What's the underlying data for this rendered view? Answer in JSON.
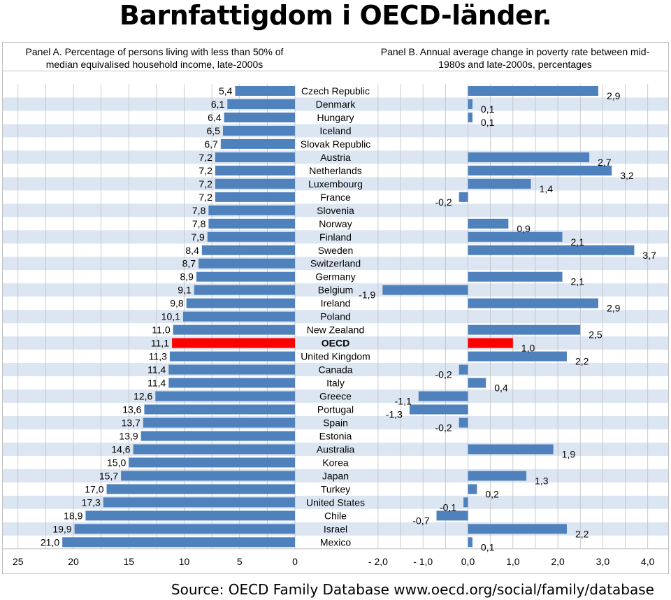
{
  "title": "Barnfattigdom i OECD-länder.",
  "source": "Source: OECD Family Database www.oecd.org/social/family/database",
  "colors": {
    "bar": "#4f81bd",
    "highlight": "#ff0000",
    "stripe": "#dce6f2",
    "grid": "#bfbfbf"
  },
  "chart_data": [
    {
      "type": "bar",
      "orientation": "horizontal",
      "title": "Panel A. Percentage of persons living with less than 50% of median equivalised household income, late-2000s",
      "xlim": [
        25,
        0
      ],
      "ticks": [
        "25",
        "20",
        "15",
        "10",
        "5",
        "0"
      ],
      "categories": [
        "Czech Republic",
        "Denmark",
        "Hungary",
        "Iceland",
        "Slovak Republic",
        "Austria",
        "Netherlands",
        "Luxembourg",
        "France",
        "Slovenia",
        "Norway",
        "Finland",
        "Sweden",
        "Switzerland",
        "Germany",
        "Belgium",
        "Ireland",
        "Poland",
        "New Zealand",
        "OECD",
        "United Kingdom",
        "Canada",
        "Italy",
        "Greece",
        "Portugal",
        "Spain",
        "Estonia",
        "Australia",
        "Korea",
        "Japan",
        "Turkey",
        "United States",
        "Chile",
        "Israel",
        "Mexico"
      ],
      "values": [
        5.4,
        6.1,
        6.4,
        6.5,
        6.7,
        7.2,
        7.2,
        7.2,
        7.2,
        7.8,
        7.8,
        7.9,
        8.4,
        8.7,
        8.9,
        9.1,
        9.8,
        10.1,
        11.0,
        11.1,
        11.3,
        11.4,
        11.4,
        12.6,
        13.6,
        13.7,
        13.9,
        14.6,
        15.0,
        15.7,
        17.0,
        17.3,
        18.9,
        19.9,
        21.0
      ],
      "labels": [
        "5,4",
        "6,1",
        "6,4",
        "6,5",
        "6,7",
        "7,2",
        "7,2",
        "7,2",
        "7,2",
        "7,8",
        "7,8",
        "7,9",
        "8,4",
        "8,7",
        "8,9",
        "9,1",
        "9,8",
        "10,1",
        "11,0",
        "11,1",
        "11,3",
        "11,4",
        "11,4",
        "12,6",
        "13,6",
        "13,7",
        "13,9",
        "14,6",
        "15,0",
        "15,7",
        "17,0",
        "17,3",
        "18,9",
        "19,9",
        "21,0"
      ],
      "highlight": "OECD"
    },
    {
      "type": "bar",
      "orientation": "horizontal",
      "title": "Panel B. Annual average change in poverty rate between mid-1980s and late-2000s, percentages",
      "xlim": [
        -2.0,
        4.0
      ],
      "ticks": [
        "- 2,0",
        "- 1,0",
        "0,0",
        "1,0",
        "2,0",
        "3,0",
        "4,0"
      ],
      "values": [
        2.9,
        0.1,
        0.1,
        null,
        null,
        2.7,
        3.2,
        1.4,
        -0.2,
        null,
        0.9,
        2.1,
        3.7,
        null,
        2.1,
        -1.9,
        2.9,
        null,
        2.5,
        1.0,
        2.2,
        -0.2,
        0.4,
        -1.1,
        -1.3,
        -0.2,
        null,
        1.9,
        null,
        1.3,
        0.2,
        -0.1,
        -0.7,
        2.2,
        0.1
      ],
      "labels": [
        "2,9",
        "0,1",
        "0,1",
        "",
        "",
        "2,7",
        "3,2",
        "1,4",
        "-0,2",
        "",
        "0,9",
        "2,1",
        "3,7",
        "",
        "2,1",
        "-1,9",
        "2,9",
        "",
        "2,5",
        "1,0",
        "2,2",
        "-0,2",
        "0,4",
        "-1,1",
        "-1,3",
        "-0,2",
        "",
        "1,9",
        "",
        "1,3",
        "0,2",
        "-0,1",
        "-0,7",
        "2,2",
        "0,1"
      ],
      "highlight": "OECD"
    }
  ]
}
